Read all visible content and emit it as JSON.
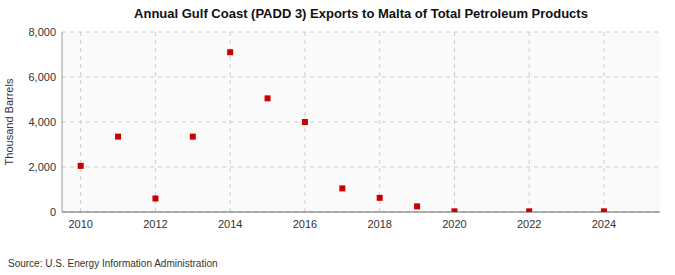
{
  "chart_data": {
    "type": "scatter",
    "title": "Annual Gulf Coast (PADD 3) Exports to Malta of Total Petroleum Products",
    "y_label": "Thousand Barrels",
    "annotations": [
      "Source: U.S. Energy Information Administration"
    ],
    "x": [
      2010,
      2011,
      2012,
      2013,
      2014,
      2015,
      2016,
      2017,
      2018,
      2019,
      2020,
      2022,
      2024
    ],
    "values": [
      2050,
      3350,
      600,
      3350,
      7100,
      5050,
      4000,
      1050,
      630,
      250,
      30,
      30,
      30
    ],
    "color": "#cc0000",
    "marker": "square",
    "xlim": [
      2009.5,
      2025.5
    ],
    "ylim": [
      0,
      8000
    ],
    "xticks": [
      2010,
      2012,
      2014,
      2016,
      2018,
      2020,
      2022,
      2024
    ],
    "yticks": [
      0,
      {
        "value": 2000,
        "label": "2,000"
      },
      {
        "value": 4000,
        "label": "4,000"
      },
      {
        "value": 6000,
        "label": "6,000"
      },
      {
        "value": 8000,
        "label": "8,000"
      }
    ],
    "grid": true
  }
}
